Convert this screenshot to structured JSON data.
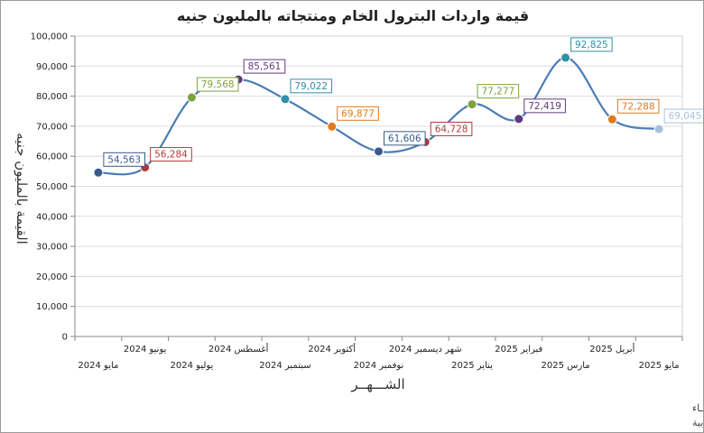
{
  "chart_data": {
    "type": "line",
    "title": "قيمة واردات البترول الخام ومنتجاته بالمليون جنيه",
    "xlabel": "الشـــهــر",
    "ylabel": "القيمة بالمليون جنيه",
    "categories": [
      "مايو 2024",
      "يونيو 2024",
      "يوليو 2024",
      "أغسطس 2024",
      "سبتمبر 2024",
      "أكتوبر 2024",
      "نوفمبر 2024",
      "شهر ديسمبر 2024",
      "يناير 2025",
      "فبراير 2025",
      "مارس 2025",
      "أبريل 2025",
      "مايو 2025"
    ],
    "values": [
      54563,
      56284,
      79568,
      85561,
      79022,
      69877,
      61606,
      64728,
      77277,
      72419,
      92825,
      72288,
      69045
    ],
    "data_labels": [
      "54,563",
      "56,284",
      "79,568",
      "85,561",
      "79,022",
      "69,877",
      "61,606",
      "64,728",
      "77,277",
      "72,419",
      "92,825",
      "72,288",
      "69,045"
    ],
    "point_colors": [
      "#3a5a8c",
      "#b03a3a",
      "#7da33a",
      "#5e3a7e",
      "#2e8fa8",
      "#e07a1f",
      "#3a5a8c",
      "#b03a3a",
      "#7da33a",
      "#5e3a7e",
      "#2e8fa8",
      "#e07a1f",
      "#a9c0dd"
    ],
    "line_color": "#4a7cb5",
    "ylim": [
      0,
      100000
    ],
    "yticks": [
      0,
      10000,
      20000,
      30000,
      40000,
      50000,
      60000,
      70000,
      80000,
      90000,
      100000
    ],
    "ytick_labels": [
      "0",
      "10,000",
      "20,000",
      "30,000",
      "40,000",
      "50,000",
      "60,000",
      "70,000",
      "80,000",
      "90,000",
      "100,000"
    ],
    "grid": true,
    "legend": "none"
  },
  "source_lines": [
    "حقوق الملكية للجهـــاز المركزي للتعبئة العـامة والأحصـــاء",
    "المصدر الأساسي للأحصاءات الرسمية لجمهورية مصر العربية"
  ]
}
